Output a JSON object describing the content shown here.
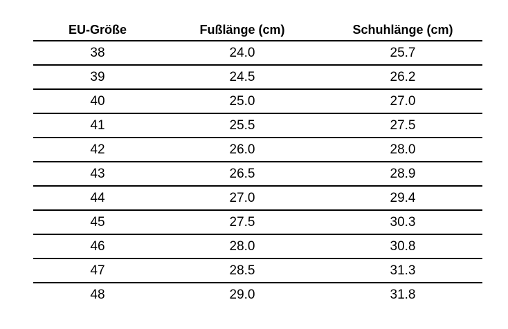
{
  "table": {
    "header": [
      "EU-Größe",
      "Fußlänge (cm)",
      "Schuhlänge (cm)"
    ],
    "rows": [
      [
        "38",
        "24.0",
        "25.7"
      ],
      [
        "39",
        "24.5",
        "26.2"
      ],
      [
        "40",
        "25.0",
        "27.0"
      ],
      [
        "41",
        "25.5",
        "27.5"
      ],
      [
        "42",
        "26.0",
        "28.0"
      ],
      [
        "43",
        "26.5",
        "28.9"
      ],
      [
        "44",
        "27.0",
        "29.4"
      ],
      [
        "45",
        "27.5",
        "30.3"
      ],
      [
        "46",
        "28.0",
        "30.8"
      ],
      [
        "47",
        "28.5",
        "31.3"
      ],
      [
        "48",
        "29.0",
        "31.8"
      ]
    ]
  }
}
